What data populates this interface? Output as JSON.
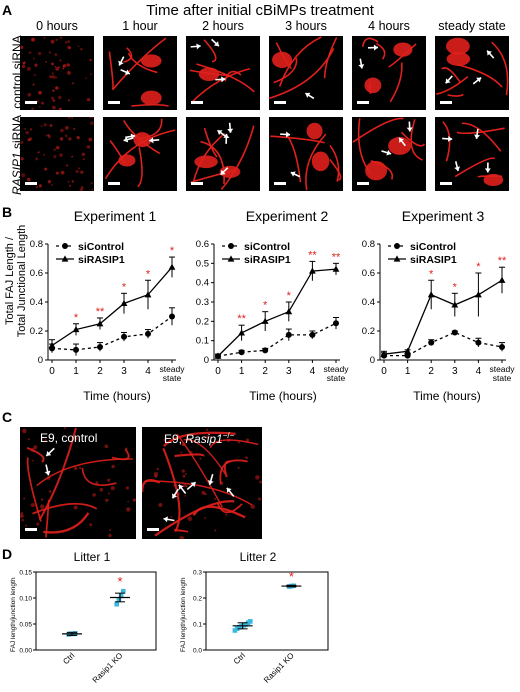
{
  "panelA": {
    "letter": "A",
    "title": "Time after initial cBiMPs treatment",
    "columns": [
      "0 hours",
      "1 hour",
      "2 hours",
      "3 hours",
      "4 hours",
      "steady state"
    ],
    "rows": [
      {
        "label": "control siRNA",
        "gene": "",
        "suffix": "control siRNA"
      },
      {
        "label": "RASIP1 siRNA",
        "gene": "RASIP1",
        "suffix": " siRNA"
      }
    ],
    "image_color": "#e0201c"
  },
  "panelB": {
    "letter": "B",
    "ylabel_line1": "Total FAJ Length /",
    "ylabel_line2": "Total  Junctional Length",
    "xlabel": "Time (hours)",
    "legend": [
      "siControl",
      "siRASIP1"
    ]
  },
  "chart_data": [
    {
      "type": "line",
      "title": "Experiment 1",
      "xlabel": "Time (hours)",
      "ylabel": "Total FAJ Length / Total  Junctional Length",
      "categories": [
        "0",
        "1",
        "2",
        "3",
        "4",
        "steady state"
      ],
      "ylim": [
        0,
        0.8
      ],
      "yticks": [
        "0",
        "0.2",
        "0.4",
        "0.6",
        "0.8"
      ],
      "series": [
        {
          "name": "siControl",
          "values": [
            0.08,
            0.07,
            0.09,
            0.16,
            0.18,
            0.3
          ],
          "errors": [
            0.03,
            0.04,
            0.03,
            0.03,
            0.03,
            0.06
          ],
          "style": "dashed"
        },
        {
          "name": "siRASIP1",
          "values": [
            0.1,
            0.21,
            0.25,
            0.39,
            0.45,
            0.64
          ],
          "errors": [
            0.04,
            0.04,
            0.04,
            0.07,
            0.1,
            0.07
          ],
          "style": "solid"
        }
      ],
      "significance": [
        "",
        "*",
        "**",
        "*",
        "*",
        "*"
      ]
    },
    {
      "type": "line",
      "title": "Experiment 2",
      "xlabel": "Time (hours)",
      "ylabel": "",
      "categories": [
        "0",
        "1",
        "2",
        "3",
        "4",
        "steady state"
      ],
      "ylim": [
        0,
        0.6
      ],
      "yticks": [
        "0",
        "0.1",
        "0.2",
        "0.3",
        "0.4",
        "0.5",
        "0.6"
      ],
      "series": [
        {
          "name": "siControl",
          "values": [
            0.02,
            0.04,
            0.05,
            0.13,
            0.13,
            0.19
          ],
          "errors": [
            0.01,
            0.01,
            0.01,
            0.03,
            0.02,
            0.03
          ],
          "style": "dashed"
        },
        {
          "name": "siRASIP1",
          "values": [
            0.02,
            0.14,
            0.2,
            0.25,
            0.46,
            0.47
          ],
          "errors": [
            0.01,
            0.04,
            0.05,
            0.05,
            0.05,
            0.03
          ],
          "style": "solid"
        }
      ],
      "significance": [
        "",
        "**",
        "*",
        "*",
        "**",
        "**"
      ]
    },
    {
      "type": "line",
      "title": "Experiment 3",
      "xlabel": "Time (hours)",
      "ylabel": "",
      "categories": [
        "0",
        "1",
        "2",
        "3",
        "4",
        "steady state"
      ],
      "ylim": [
        0,
        0.8
      ],
      "yticks": [
        "0",
        "0.2",
        "0.4",
        "0.6",
        "0.8"
      ],
      "series": [
        {
          "name": "siControl",
          "values": [
            0.03,
            0.03,
            0.12,
            0.19,
            0.12,
            0.09
          ],
          "errors": [
            0.02,
            0.01,
            0.02,
            0.01,
            0.03,
            0.03
          ],
          "style": "dashed"
        },
        {
          "name": "siRASIP1",
          "values": [
            0.04,
            0.06,
            0.45,
            0.38,
            0.45,
            0.55
          ],
          "errors": [
            0.02,
            0.01,
            0.1,
            0.08,
            0.15,
            0.09
          ],
          "style": "solid"
        }
      ],
      "significance": [
        "",
        "",
        "*",
        "*",
        "*",
        "**"
      ]
    },
    {
      "type": "scatter",
      "title": "Litter 1",
      "ylabel": "FAJ length/junction length",
      "categories": [
        "Ctrl",
        "Rasip1 KO"
      ],
      "ylim": [
        0,
        0.15
      ],
      "yticks": [
        "0.00",
        "0.05",
        "0.10",
        "0.15"
      ],
      "groups": [
        {
          "name": "Ctrl",
          "points": [
            0.03,
            0.031,
            0.031,
            0.032
          ],
          "mean": 0.031
        },
        {
          "name": "Rasip1 KO",
          "points": [
            0.088,
            0.097,
            0.104,
            0.113
          ],
          "mean": 0.101
        }
      ],
      "significance": [
        "",
        "*"
      ]
    },
    {
      "type": "scatter",
      "title": "Litter 2",
      "ylabel": "FAJ length/junction length",
      "categories": [
        "Ctrl",
        "Rasip1 KO"
      ],
      "ylim": [
        0,
        0.3
      ],
      "yticks": [
        "0.0",
        "0.1",
        "0.2",
        "0.3"
      ],
      "groups": [
        {
          "name": "Ctrl",
          "points": [
            0.075,
            0.082,
            0.088,
            0.092,
            0.095,
            0.098,
            0.105,
            0.11
          ],
          "mean": 0.093
        },
        {
          "name": "Rasip1 KO",
          "points": [
            0.244,
            0.246,
            0.247
          ],
          "mean": 0.246
        }
      ],
      "significance": [
        "",
        "*"
      ]
    }
  ],
  "panelC": {
    "letter": "C",
    "labels": [
      {
        "text": "E9, control",
        "gene": "",
        "sup": ""
      },
      {
        "text": "E9, ",
        "gene": "Rasip1",
        "sup": "−/−"
      }
    ]
  },
  "panelD": {
    "letter": "D",
    "point_color": "#3bb8e0",
    "star_color": "#e0201c"
  }
}
